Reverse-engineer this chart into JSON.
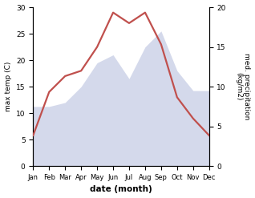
{
  "months": [
    "Jan",
    "Feb",
    "Mar",
    "Apr",
    "May",
    "Jun",
    "Jul",
    "Aug",
    "Sep",
    "Oct",
    "Nov",
    "Dec"
  ],
  "month_positions": [
    1,
    2,
    3,
    4,
    5,
    6,
    7,
    8,
    9,
    10,
    11,
    12
  ],
  "max_temp": [
    5.8,
    14.0,
    17.0,
    18.0,
    22.5,
    29.0,
    27.0,
    29.0,
    23.0,
    13.0,
    9.0,
    5.8
  ],
  "med_precip": [
    7.5,
    7.5,
    8.0,
    10.0,
    13.0,
    14.0,
    11.0,
    15.0,
    17.0,
    12.0,
    9.5,
    9.5
  ],
  "temp_color": "#c0504d",
  "precip_fill_color": "#aab4d8",
  "precip_fill_alpha": 0.5,
  "left_ylabel": "max temp (C)",
  "right_ylabel": "med. precipitation\n(kg/m2)",
  "xlabel": "date (month)",
  "ylim_left": [
    0,
    30
  ],
  "ylim_right": [
    0,
    20
  ],
  "yticks_left": [
    0,
    5,
    10,
    15,
    20,
    25,
    30
  ],
  "yticks_right": [
    0,
    5,
    10,
    15,
    20
  ],
  "background_color": "#ffffff",
  "line_width": 1.6,
  "figsize": [
    3.18,
    2.47
  ],
  "dpi": 100
}
